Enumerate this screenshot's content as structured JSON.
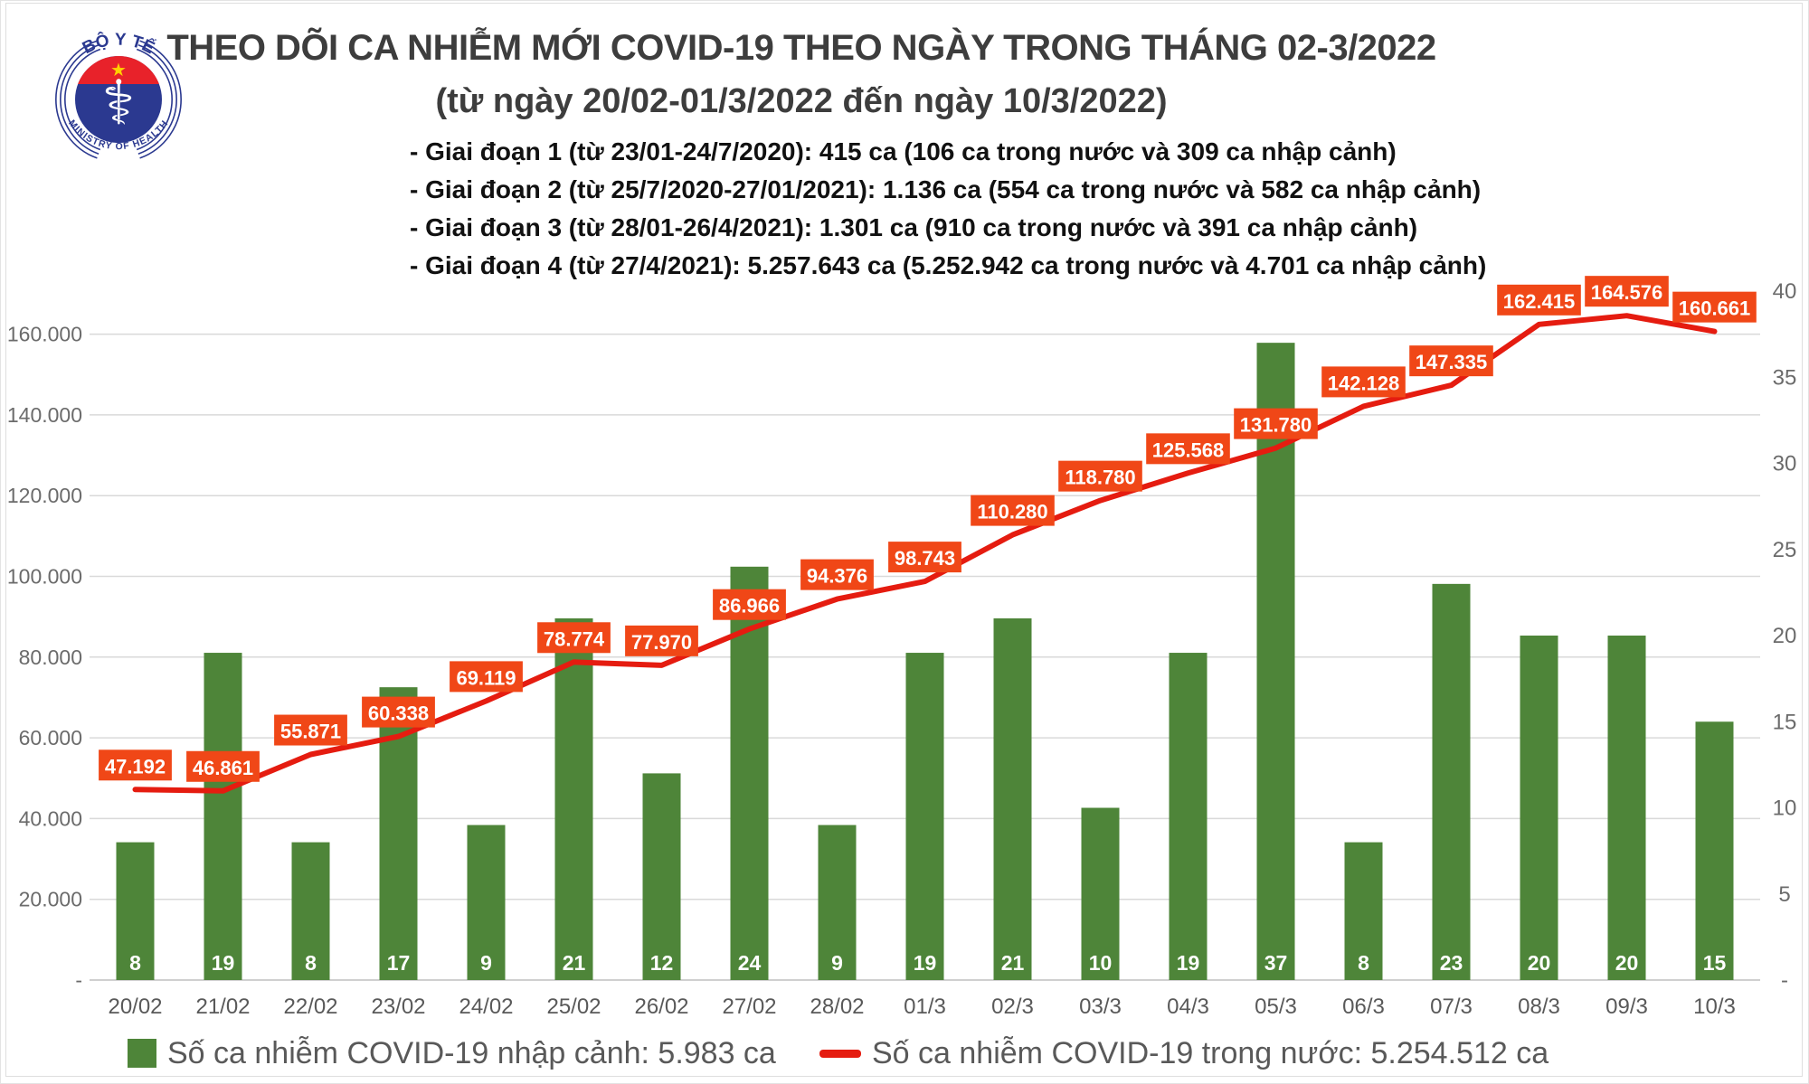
{
  "logo": {
    "top_text": "BỘ Y TẾ",
    "bottom_text": "MINISTRY OF HEALTH",
    "blue": "#2b3990",
    "red": "#e8222a",
    "star_yellow": "#ffd100"
  },
  "header": {
    "title": "THEO DÕI CA NHIỄM MỚI COVID-19 THEO NGÀY TRONG THÁNG 02-3/2022",
    "subtitle": "(từ ngày 20/02-01/3/2022 đến ngày 10/3/2022)"
  },
  "notes": [
    "- Giai đoạn 1 (từ 23/01-24/7/2020): 415 ca (106 ca trong nước và 309 ca nhập cảnh)",
    "- Giai đoạn 2 (từ 25/7/2020-27/01/2021): 1.136 ca (554 ca trong nước và 582 ca nhập cảnh)",
    "- Giai đoạn 3 (từ 28/01-26/4/2021): 1.301 ca (910 ca trong nước và 391 ca nhập cảnh)",
    "- Giai đoạn 4 (từ 27/4/2021): 5.257.643 ca (5.252.942 ca trong nước và 4.701 ca nhập cảnh)"
  ],
  "legend": {
    "bar_label": "Số ca nhiễm COVID-19 nhập cảnh: 5.983 ca",
    "line_label": "Số ca nhiễm COVID-19 trong nước: 5.254.512 ca"
  },
  "chart_data": {
    "type": "bar+line",
    "categories": [
      "20/02",
      "21/02",
      "22/02",
      "23/02",
      "24/02",
      "25/02",
      "26/02",
      "27/02",
      "28/02",
      "01/3",
      "02/3",
      "03/3",
      "04/3",
      "05/3",
      "06/3",
      "07/3",
      "08/3",
      "09/3",
      "10/3"
    ],
    "series": [
      {
        "name": "Số ca nhiễm COVID-19 nhập cảnh",
        "type": "bar",
        "axis": "right",
        "color": "#4e8539",
        "values": [
          8,
          19,
          8,
          17,
          9,
          21,
          12,
          24,
          9,
          19,
          21,
          10,
          19,
          37,
          8,
          23,
          20,
          20,
          15
        ]
      },
      {
        "name": "Số ca nhiễm COVID-19 trong nước",
        "type": "line",
        "axis": "left",
        "color": "#e51c10",
        "label_bg": "#f04717",
        "values": [
          47192,
          46861,
          55871,
          60338,
          69119,
          78774,
          77970,
          86966,
          94376,
          98743,
          110280,
          118780,
          125568,
          131780,
          142128,
          147335,
          162415,
          164576,
          160661
        ],
        "point_labels": [
          "47.192",
          "46.861",
          "55.871",
          "60.338",
          "69.119",
          "78.774",
          "77.970",
          "86.966",
          "94.376",
          "98.743",
          "110.280",
          "118.780",
          "125.568",
          "131.780",
          "142.128",
          "147.335",
          "162.415",
          "164.576",
          "160.661"
        ]
      }
    ],
    "left_axis": {
      "tick_labels": [
        "160.000",
        "140.000",
        "120.000",
        "100.000",
        "80.000",
        "60.000",
        "40.000",
        "20.000",
        "-"
      ],
      "tick_values": [
        160000,
        140000,
        120000,
        100000,
        80000,
        60000,
        40000,
        20000,
        0
      ],
      "max": 170650
    },
    "right_axis": {
      "tick_labels": [
        "40",
        "35",
        "30",
        "25",
        "20",
        "15",
        "10",
        "5",
        "-"
      ],
      "tick_values": [
        40,
        35,
        30,
        25,
        20,
        15,
        10,
        5,
        0
      ],
      "max": 40
    },
    "grid": true,
    "legend_position": "bottom",
    "grid_color": "#d9d9d9",
    "axis_text_color": "#6b6b6b",
    "xlabel_color": "#595959"
  }
}
